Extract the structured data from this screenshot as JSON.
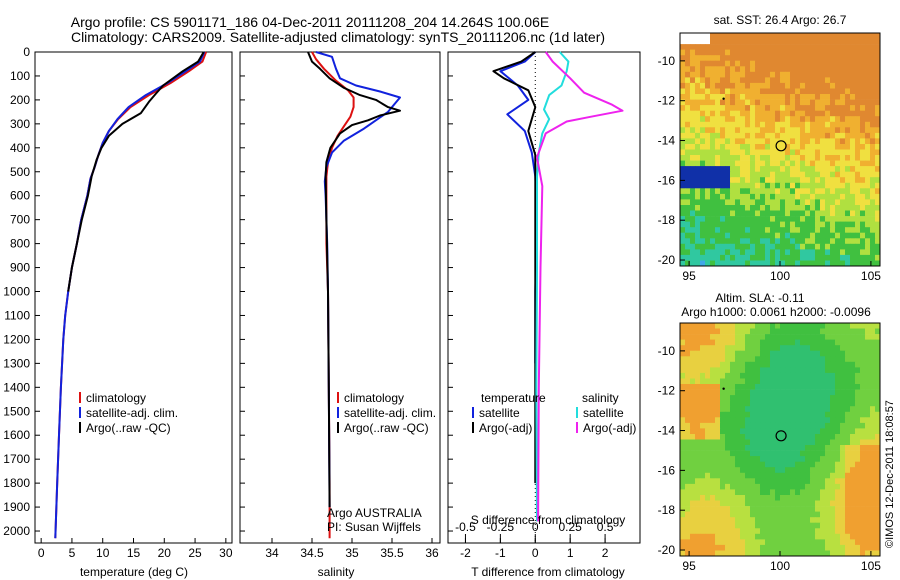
{
  "header": {
    "line1": "Argo profile: CS 5901171_186 04-Dec-2011 20111208_204 14.264S 100.06E",
    "line2": "Climatology: CARS2009. Satellite-adjusted climatology: synTS_20111206.nc (1d later)"
  },
  "colors": {
    "climatology": "#dd1111",
    "satellite": "#1122dd",
    "argo": "#000000",
    "cyan": "#22dddd",
    "magenta": "#ee22ee"
  },
  "chart_data": [
    {
      "type": "line",
      "id": "temperature",
      "xlabel": "temperature (deg C)",
      "xlim": [
        -1,
        31
      ],
      "ylim": [
        0,
        2050
      ],
      "xticks": [
        "0",
        "5",
        "10",
        "15",
        "20",
        "25",
        "30"
      ],
      "yticks": [
        "0",
        "100",
        "200",
        "300",
        "400",
        "500",
        "600",
        "700",
        "800",
        "900",
        "1000",
        "1100",
        "1200",
        "1300",
        "1400",
        "1500",
        "1600",
        "1700",
        "1800",
        "1900",
        "2000"
      ],
      "legend": [
        "climatology",
        "satellite-adj. clim.",
        "Argo(..raw -QC)"
      ],
      "series": [
        {
          "name": "climatology",
          "x": [
            26.8,
            26.2,
            24,
            21,
            17.5,
            14.5,
            12.5,
            11,
            10,
            9.3,
            8.7,
            8,
            7.5,
            6.5,
            5.8,
            5,
            4.4,
            3.9,
            3.6,
            3.2,
            2.9,
            2.6,
            2.3
          ],
          "y": [
            0,
            40,
            80,
            130,
            180,
            230,
            280,
            330,
            380,
            430,
            480,
            530,
            600,
            700,
            800,
            900,
            1000,
            1100,
            1200,
            1400,
            1600,
            1800,
            2030
          ]
        },
        {
          "name": "satellite-adj. clim.",
          "x": [
            26.5,
            25.8,
            23.5,
            20.5,
            17,
            14.2,
            12.4,
            11,
            10,
            9.3,
            8.7,
            8,
            7.5,
            6.5,
            5.8,
            5,
            4.4,
            3.9,
            3.6,
            3.2,
            2.9,
            2.6,
            2.3
          ],
          "y": [
            0,
            40,
            80,
            130,
            180,
            230,
            280,
            330,
            380,
            430,
            480,
            530,
            600,
            700,
            800,
            900,
            1000,
            1100,
            1200,
            1400,
            1600,
            1800,
            2030
          ]
        },
        {
          "name": "Argo(..raw -QC)",
          "x": [
            26.4,
            25.5,
            23,
            19.8,
            18.6,
            17.6,
            16.2,
            13.2,
            11,
            9.8,
            9,
            8.2,
            7.6,
            6.6,
            5.8,
            5,
            4.4
          ],
          "y": [
            0,
            40,
            80,
            140,
            175,
            205,
            255,
            300,
            350,
            400,
            450,
            520,
            600,
            700,
            800,
            900,
            1000
          ]
        }
      ]
    },
    {
      "type": "line",
      "id": "salinity",
      "xlabel": "salinity",
      "xlim": [
        33.6,
        36.1
      ],
      "ylim": [
        0,
        2050
      ],
      "xticks": [
        "34",
        "34.5",
        "35",
        "35.5",
        "36"
      ],
      "legend": [
        "climatology",
        "satellite-adj. clim.",
        "Argo(..raw -QC)"
      ],
      "annotation": [
        "Argo AUSTRALIA",
        "PI: Susan Wijffels"
      ],
      "series": [
        {
          "name": "climatology",
          "x": [
            34.5,
            34.55,
            34.65,
            34.8,
            34.95,
            35.02,
            35.02,
            34.98,
            34.9,
            34.82,
            34.75,
            34.7,
            34.68,
            34.68,
            34.68,
            34.7,
            34.71,
            34.72,
            34.72
          ],
          "y": [
            0,
            30,
            70,
            120,
            160,
            190,
            230,
            270,
            310,
            350,
            400,
            460,
            520,
            600,
            800,
            1000,
            1400,
            1800,
            2030
          ]
        },
        {
          "name": "satellite-adj. clim.",
          "x": [
            34.55,
            34.75,
            34.8,
            34.85,
            35.05,
            35.35,
            35.6,
            35.45,
            35.15,
            34.9,
            34.75,
            34.68,
            34.66,
            34.67,
            34.69,
            34.7,
            34.71,
            34.72
          ],
          "y": [
            0,
            20,
            70,
            110,
            140,
            165,
            190,
            250,
            320,
            370,
            420,
            480,
            540,
            600,
            800,
            1000,
            1400,
            1900
          ]
        },
        {
          "name": "Argo(..raw -QC)",
          "x": [
            34.45,
            34.5,
            34.6,
            34.72,
            34.9,
            35.1,
            35.3,
            35.45,
            35.6,
            35.35,
            35.2,
            35,
            34.85,
            34.73,
            34.68,
            34.67,
            34.68,
            34.7,
            34.71,
            34.72
          ],
          "y": [
            0,
            40,
            70,
            110,
            150,
            180,
            200,
            230,
            245,
            265,
            285,
            305,
            340,
            400,
            460,
            520,
            700,
            1000,
            1400,
            1900
          ]
        }
      ]
    },
    {
      "type": "line",
      "id": "differences",
      "xlabel": "T difference from climatology",
      "xlabel2": "S difference from climatology",
      "xlim": [
        -2.5,
        3.0
      ],
      "ylim": [
        0,
        2050
      ],
      "xticks": [
        "-2",
        "-1",
        "0",
        "1",
        "2"
      ],
      "xticks_s": [
        "-0.5",
        "-0.25",
        "0",
        "0.25",
        "0.5"
      ],
      "legend_headers": [
        "temperature",
        "salinity"
      ],
      "legend": [
        "satellite",
        "Argo(-adj)",
        "satellite",
        "Argo(-adj)"
      ],
      "series": [
        {
          "name": "temperature satellite",
          "x": [
            0,
            -0.3,
            -1,
            -0.5,
            -0.2,
            -0.8,
            -0.3,
            -0.1,
            0,
            0.05,
            0,
            0
          ],
          "y": [
            0,
            40,
            80,
            140,
            200,
            260,
            330,
            420,
            520,
            700,
            1000,
            1300
          ]
        },
        {
          "name": "temperature Argo(-adj)",
          "x": [
            0,
            -0.4,
            -1.2,
            -0.9,
            -0.2,
            0,
            -0.2,
            0,
            0,
            0,
            0,
            0,
            0
          ],
          "y": [
            0,
            40,
            80,
            110,
            160,
            230,
            330,
            430,
            560,
            800,
            1100,
            1500,
            1800
          ]
        },
        {
          "name": "salinity satellite",
          "x": [
            0.7,
            0.95,
            0.9,
            0.75,
            0.4,
            0.25,
            0.4,
            0.2,
            0.1,
            0.05,
            0.05,
            0.03,
            0.05
          ],
          "y": [
            0,
            40,
            80,
            140,
            180,
            240,
            280,
            340,
            420,
            520,
            900,
            1400,
            1960
          ]
        },
        {
          "name": "salinity Argo(-adj)",
          "x": [
            0.3,
            0.5,
            1,
            1.4,
            2.2,
            2.5,
            1.6,
            0.9,
            0.3,
            0.05,
            0.2,
            0.15,
            0.1,
            0.08
          ],
          "y": [
            0,
            40,
            110,
            170,
            220,
            245,
            270,
            290,
            340,
            440,
            560,
            900,
            1400,
            1960
          ]
        }
      ]
    },
    {
      "type": "heatmap",
      "id": "sst_map",
      "title": "sat. SST: 26.4  Argo: 26.7",
      "xticks": [
        "95",
        "100",
        "105"
      ],
      "yticks": [
        "-10",
        "-12",
        "-14",
        "-16",
        "-18",
        "-20"
      ],
      "xlim": [
        94.5,
        105.5
      ],
      "ylim": [
        -20.3,
        -8.6
      ],
      "marker": {
        "lon": 100.06,
        "lat": -14.264
      }
    },
    {
      "type": "heatmap",
      "id": "sla_map",
      "title1": "Altim. SLA: -0.11",
      "title2": "Argo h1000: 0.0061 h2000: -0.0096",
      "xticks": [
        "95",
        "100",
        "105"
      ],
      "yticks": [
        "-10",
        "-12",
        "-14",
        "-16",
        "-18",
        "-20"
      ],
      "xlim": [
        94.5,
        105.5
      ],
      "ylim": [
        -20.3,
        -8.6
      ],
      "marker": {
        "lon": 100.06,
        "lat": -14.264
      }
    }
  ],
  "footer": {
    "credit": "©IMOS 12-Dec-2011 18:08:57"
  }
}
